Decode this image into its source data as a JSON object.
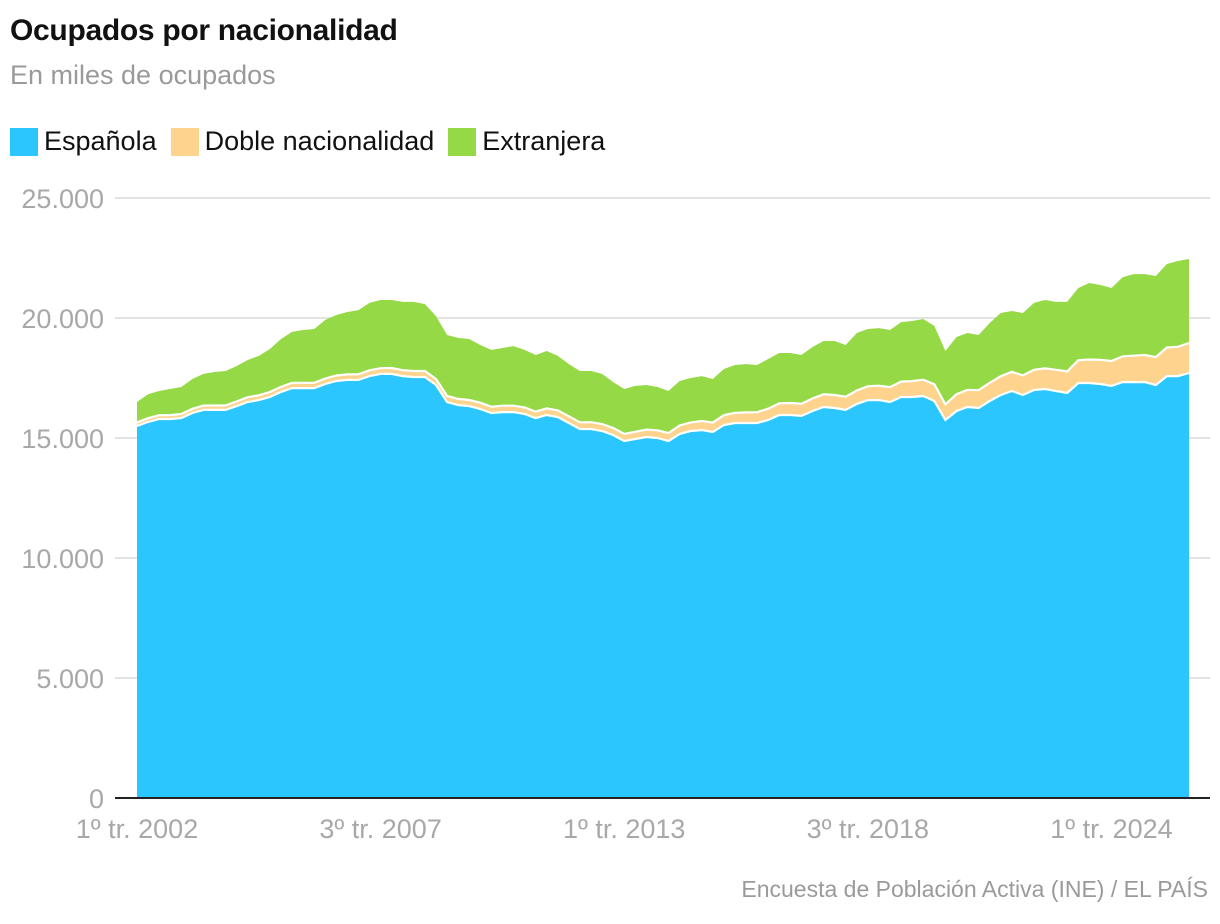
{
  "title": "Ocupados por nacionalidad",
  "subtitle": "En miles de ocupados",
  "source": "Encuesta de Población Activa (INE) / EL PAÍS",
  "colors": {
    "espanola": "#2bc6fd",
    "doble": "#fdd38e",
    "extranjera": "#95d946",
    "grid": "#e3e3e3",
    "axis": "#222222"
  },
  "chart_data": {
    "type": "area",
    "stacked": true,
    "title": "Ocupados por nacionalidad",
    "subtitle": "En miles de ocupados",
    "legend": "top-left",
    "grid": true,
    "ylim": [
      0,
      25000
    ],
    "y_ticks": [
      "0",
      "5.000",
      "10.000",
      "15.000",
      "20.000",
      "25.000"
    ],
    "y_tick_values": [
      0,
      5000,
      10000,
      15000,
      20000,
      25000
    ],
    "x_ticks": [
      "1º tr. 2002",
      "3º tr. 2007",
      "1º tr. 2013",
      "3º tr. 2018",
      "1º tr. 2024"
    ],
    "categories": [
      "1º tr. 2002",
      "2º tr. 2002",
      "3º tr. 2002",
      "4º tr. 2002",
      "1º tr. 2003",
      "2º tr. 2003",
      "3º tr. 2003",
      "4º tr. 2003",
      "1º tr. 2004",
      "2º tr. 2004",
      "3º tr. 2004",
      "4º tr. 2004",
      "1º tr. 2005",
      "2º tr. 2005",
      "3º tr. 2005",
      "4º tr. 2005",
      "1º tr. 2006",
      "2º tr. 2006",
      "3º tr. 2006",
      "4º tr. 2006",
      "1º tr. 2007",
      "2º tr. 2007",
      "3º tr. 2007",
      "4º tr. 2007",
      "1º tr. 2008",
      "2º tr. 2008",
      "3º tr. 2008",
      "4º tr. 2008",
      "1º tr. 2009",
      "2º tr. 2009",
      "3º tr. 2009",
      "4º tr. 2009",
      "1º tr. 2010",
      "2º tr. 2010",
      "3º tr. 2010",
      "4º tr. 2010",
      "1º tr. 2011",
      "2º tr. 2011",
      "3º tr. 2011",
      "4º tr. 2011",
      "1º tr. 2012",
      "2º tr. 2012",
      "3º tr. 2012",
      "4º tr. 2012",
      "1º tr. 2013",
      "2º tr. 2013",
      "3º tr. 2013",
      "4º tr. 2013",
      "1º tr. 2014",
      "2º tr. 2014",
      "3º tr. 2014",
      "4º tr. 2014",
      "1º tr. 2015",
      "2º tr. 2015",
      "3º tr. 2015",
      "4º tr. 2015",
      "1º tr. 2016",
      "2º tr. 2016",
      "3º tr. 2016",
      "4º tr. 2016",
      "1º tr. 2017",
      "2º tr. 2017",
      "3º tr. 2017",
      "4º tr. 2017",
      "1º tr. 2018",
      "2º tr. 2018",
      "3º tr. 2018",
      "4º tr. 2018",
      "1º tr. 2019",
      "2º tr. 2019",
      "3º tr. 2019",
      "4º tr. 2019",
      "1º tr. 2020",
      "2º tr. 2020",
      "3º tr. 2020",
      "4º tr. 2020",
      "1º tr. 2021",
      "2º tr. 2021",
      "3º tr. 2021",
      "4º tr. 2021",
      "1º tr. 2022",
      "2º tr. 2022",
      "3º tr. 2022",
      "4º tr. 2022",
      "1º tr. 2023",
      "2º tr. 2023",
      "3º tr. 2023",
      "4º tr. 2023",
      "1º tr. 2024",
      "2º tr. 2024",
      "3º tr. 2024",
      "4º tr. 2024",
      "1º tr. 2025",
      "2º tr. 2025",
      "3º tr. 2025",
      "4º tr. 2025"
    ],
    "series": [
      {
        "name": "Española",
        "values": [
          15500,
          15670,
          15790,
          15790,
          15830,
          16040,
          16170,
          16170,
          16170,
          16330,
          16500,
          16580,
          16710,
          16920,
          17080,
          17080,
          17080,
          17250,
          17375,
          17420,
          17420,
          17580,
          17670,
          17670,
          17580,
          17540,
          17540,
          17210,
          16500,
          16375,
          16330,
          16210,
          16040,
          16080,
          16080,
          16000,
          15830,
          15960,
          15875,
          15625,
          15375,
          15375,
          15290,
          15125,
          14875,
          14960,
          15040,
          15000,
          14875,
          15170,
          15290,
          15330,
          15250,
          15540,
          15625,
          15625,
          15625,
          15750,
          15960,
          15960,
          15920,
          16125,
          16290,
          16250,
          16170,
          16420,
          16580,
          16580,
          16500,
          16710,
          16710,
          16750,
          16540,
          15750,
          16125,
          16290,
          16250,
          16540,
          16790,
          16960,
          16790,
          17000,
          17040,
          16960,
          16875,
          17290,
          17290,
          17250,
          17170,
          17330,
          17330,
          17330,
          17210,
          17580,
          17580,
          17710
        ]
      },
      {
        "name": "Doble nacionalidad",
        "values": [
          150,
          155,
          160,
          165,
          170,
          175,
          180,
          185,
          190,
          195,
          200,
          200,
          205,
          210,
          215,
          215,
          220,
          225,
          230,
          230,
          235,
          240,
          240,
          245,
          245,
          250,
          250,
          250,
          250,
          255,
          255,
          260,
          260,
          265,
          265,
          270,
          270,
          275,
          275,
          280,
          280,
          285,
          290,
          290,
          295,
          300,
          310,
          320,
          330,
          350,
          360,
          380,
          390,
          410,
          420,
          440,
          450,
          470,
          480,
          500,
          510,
          520,
          530,
          540,
          550,
          560,
          580,
          600,
          620,
          640,
          660,
          680,
          700,
          650,
          700,
          720,
          740,
          760,
          780,
          800,
          820,
          840,
          860,
          880,
          900,
          950,
          980,
          1010,
          1040,
          1070,
          1100,
          1130,
          1160,
          1190,
          1220,
          1250
        ]
      },
      {
        "name": "Extranjera",
        "values": [
          850,
          1000,
          1010,
          1085,
          1125,
          1245,
          1320,
          1395,
          1430,
          1475,
          1550,
          1640,
          1795,
          1995,
          2125,
          2205,
          2240,
          2445,
          2520,
          2600,
          2675,
          2810,
          2840,
          2835,
          2845,
          2880,
          2790,
          2620,
          2540,
          2540,
          2540,
          2405,
          2370,
          2405,
          2485,
          2400,
          2360,
          2390,
          2270,
          2175,
          2135,
          2130,
          2090,
          1915,
          1870,
          1910,
          1860,
          1805,
          1755,
          1855,
          1850,
          1870,
          1820,
          1925,
          1995,
          2015,
          1965,
          2070,
          2100,
          2080,
          2030,
          2145,
          2220,
          2250,
          2155,
          2395,
          2380,
          2400,
          2380,
          2480,
          2505,
          2530,
          2430,
          2225,
          2385,
          2365,
          2300,
          2490,
          2640,
          2530,
          2600,
          2790,
          2850,
          2830,
          2895,
          3010,
          3190,
          3115,
          3040,
          3300,
          3400,
          3370,
          3380,
          3480,
          3575,
          3500
        ]
      }
    ]
  }
}
